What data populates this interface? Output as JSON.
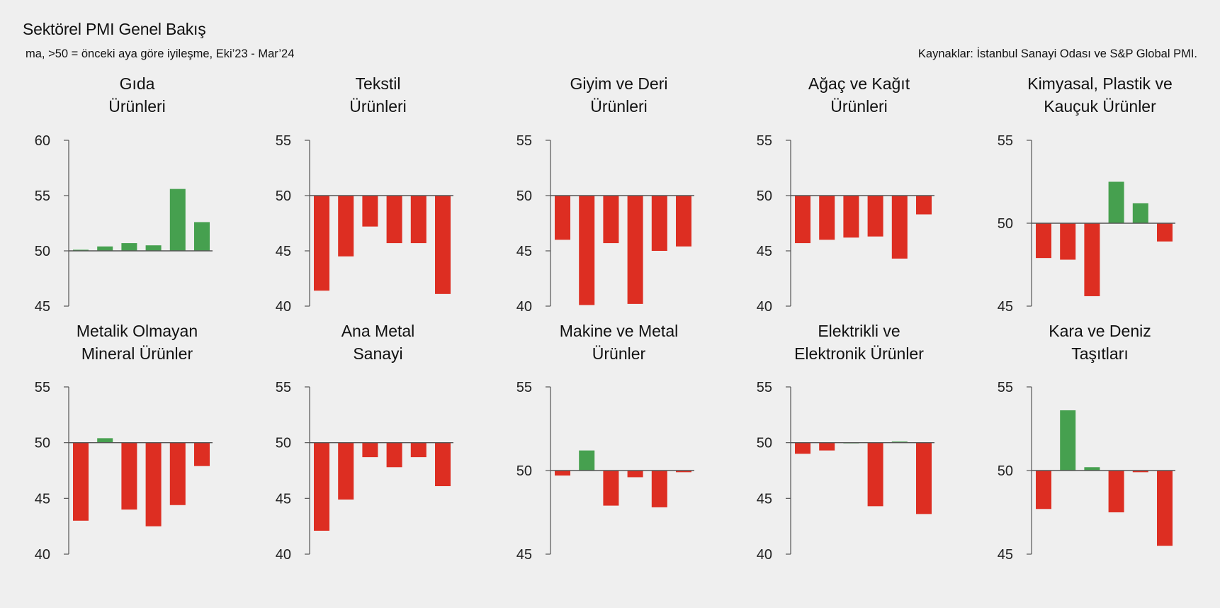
{
  "header": {
    "title": "Sektörel PMI Genel Bakış",
    "subtitle": "ma, >50 = önceki aya göre iyileşme, Eki’23 - Mar’24",
    "source": "Kaynaklar: İstanbul Sanayi Odası ve S&P Global PMI."
  },
  "colors": {
    "positive": "#46a04f",
    "negative": "#dd2e22",
    "axis": "#555555",
    "background": "#efefef"
  },
  "chart_data": [
    {
      "type": "bar",
      "title": [
        "Gıda",
        "Ürünleri"
      ],
      "ylim": [
        45,
        60
      ],
      "yticks": [
        45,
        50,
        55,
        60
      ],
      "baseline": 50,
      "values": [
        50.1,
        50.4,
        50.7,
        50.5,
        55.6,
        52.6
      ]
    },
    {
      "type": "bar",
      "title": [
        "Tekstil",
        "Ürünleri"
      ],
      "ylim": [
        40,
        55
      ],
      "yticks": [
        40,
        45,
        50,
        55
      ],
      "baseline": 50,
      "values": [
        41.4,
        44.5,
        47.2,
        45.7,
        45.7,
        41.1
      ]
    },
    {
      "type": "bar",
      "title": [
        "Giyim ve Deri",
        "Ürünleri"
      ],
      "ylim": [
        40,
        55
      ],
      "yticks": [
        40,
        45,
        50,
        55
      ],
      "baseline": 50,
      "values": [
        46.0,
        40.1,
        45.7,
        40.2,
        45.0,
        45.4
      ]
    },
    {
      "type": "bar",
      "title": [
        "Ağaç ve Kağıt",
        "Ürünleri"
      ],
      "ylim": [
        40,
        55
      ],
      "yticks": [
        40,
        45,
        50,
        55
      ],
      "baseline": 50,
      "values": [
        45.7,
        46.0,
        46.2,
        46.3,
        44.3,
        48.3
      ]
    },
    {
      "type": "bar",
      "title": [
        "Kimyasal, Plastik ve",
        "Kauçuk Ürünler"
      ],
      "ylim": [
        45,
        55
      ],
      "yticks": [
        45,
        50,
        55
      ],
      "baseline": 50,
      "values": [
        47.9,
        47.8,
        45.6,
        52.5,
        51.2,
        48.9
      ]
    },
    {
      "type": "bar",
      "title": [
        "Metalik Olmayan",
        "Mineral Ürünler"
      ],
      "ylim": [
        40,
        55
      ],
      "yticks": [
        40,
        45,
        50,
        55
      ],
      "baseline": 50,
      "values": [
        43.0,
        50.4,
        44.0,
        42.5,
        44.4,
        47.9
      ]
    },
    {
      "type": "bar",
      "title": [
        "Ana Metal",
        "Sanayi"
      ],
      "ylim": [
        40,
        55
      ],
      "yticks": [
        40,
        45,
        50,
        55
      ],
      "baseline": 50,
      "values": [
        42.1,
        44.9,
        48.7,
        47.8,
        48.7,
        46.1
      ]
    },
    {
      "type": "bar",
      "title": [
        "Makine ve Metal",
        "Ürünler"
      ],
      "ylim": [
        45,
        55
      ],
      "yticks": [
        45,
        50,
        55
      ],
      "baseline": 50,
      "values": [
        49.7,
        51.2,
        47.9,
        49.6,
        47.8,
        49.9
      ]
    },
    {
      "type": "bar",
      "title": [
        "Elektrikli ve",
        "Elektronik Ürünler"
      ],
      "ylim": [
        40,
        55
      ],
      "yticks": [
        40,
        45,
        50,
        55
      ],
      "baseline": 50,
      "values": [
        49.0,
        49.3,
        50.0,
        44.3,
        50.1,
        43.6
      ]
    },
    {
      "type": "bar",
      "title": [
        "Kara ve Deniz",
        "Taşıtları"
      ],
      "ylim": [
        45,
        55
      ],
      "yticks": [
        45,
        50,
        55
      ],
      "baseline": 50,
      "values": [
        47.7,
        53.6,
        50.2,
        47.5,
        49.9,
        45.5
      ]
    }
  ]
}
